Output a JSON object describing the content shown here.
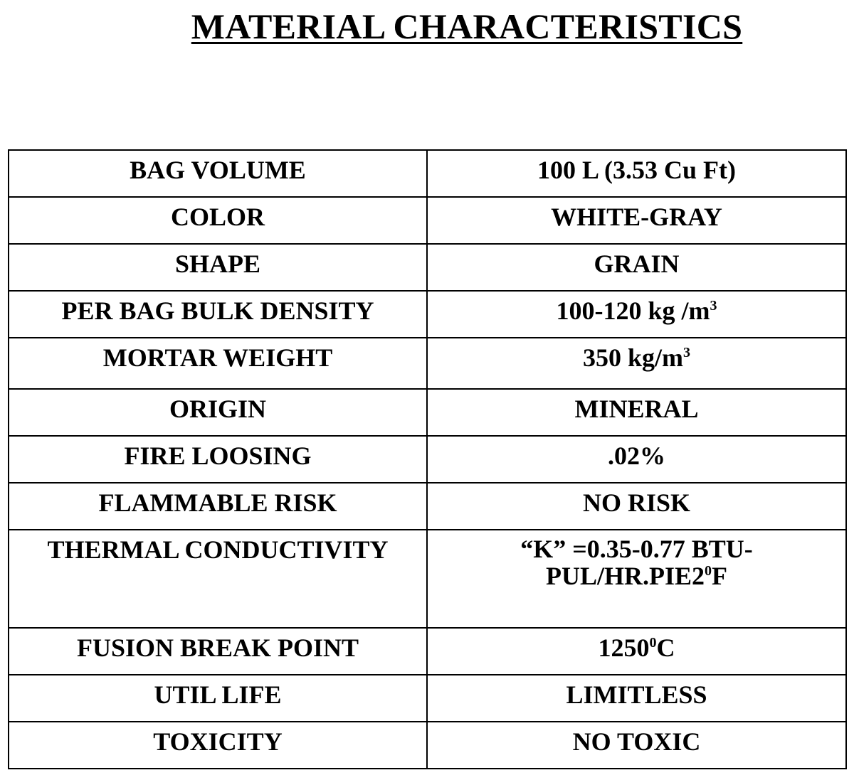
{
  "title": "MATERIAL CHARACTERISTICS",
  "rows": [
    {
      "property": "BAG VOLUME",
      "value": "100 L (3.53 Cu Ft)"
    },
    {
      "property": "COLOR",
      "value": "WHITE-GRAY"
    },
    {
      "property": "SHAPE",
      "value": "GRAIN"
    },
    {
      "property": "PER BAG BULK DENSITY",
      "value_main": "100-120 kg /m",
      "value_sup": "3"
    },
    {
      "property": "MORTAR WEIGHT",
      "value_main": "350 kg/m",
      "value_sup": "3"
    },
    {
      "property": "ORIGIN",
      "value": "MINERAL"
    },
    {
      "property": "FIRE LOOSING",
      "value": ".02%"
    },
    {
      "property": "FLAMMABLE RISK",
      "value": "NO RISK"
    },
    {
      "property": "THERMAL CONDUCTIVITY",
      "value_main": "“K” =0.35-0.77 BTU-PUL/HR.PIE2",
      "value_sup": "0",
      "value_tail": "F"
    },
    {
      "property": "FUSION BREAK POINT",
      "value_main": "1250",
      "value_sup": "0",
      "value_tail": "C"
    },
    {
      "property": "UTIL LIFE",
      "value": "LIMITLESS"
    },
    {
      "property": "TOXICITY",
      "value": "NO TOXIC"
    }
  ]
}
